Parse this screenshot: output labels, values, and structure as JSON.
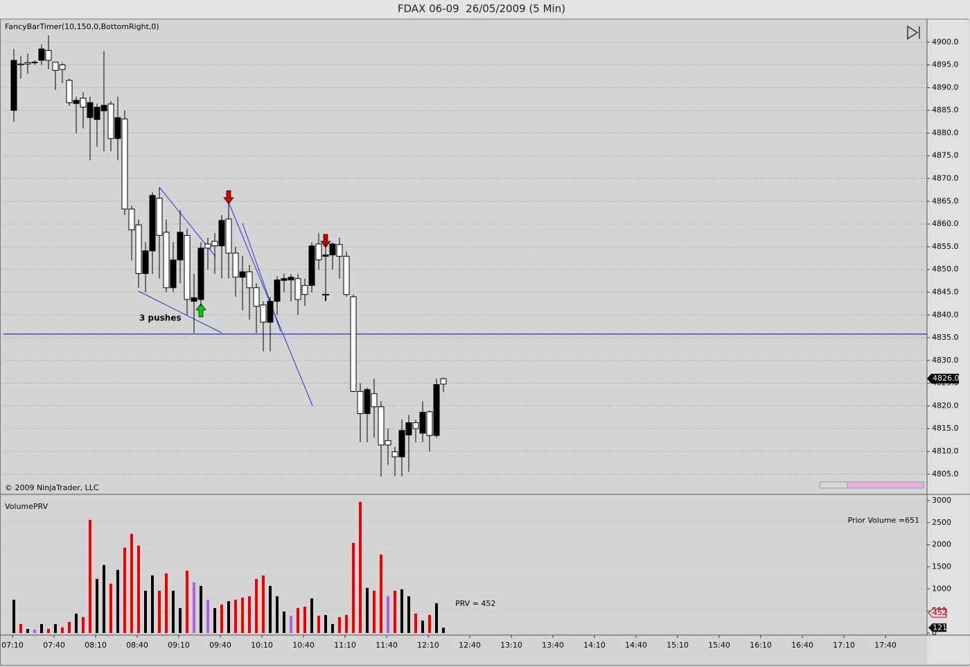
{
  "window_title": "FDAX 06-09  26/05/2009 (5 Min)",
  "x_axis": {
    "labels": [
      "07:10",
      "07:40",
      "08:10",
      "08:40",
      "09:10",
      "09:40",
      "10:10",
      "10:40",
      "11:10",
      "11:40",
      "12:10",
      "12:40",
      "13:10",
      "13:40",
      "14:10",
      "14:40",
      "15:10",
      "15:40",
      "16:10",
      "16:40",
      "17:10",
      "17:40"
    ]
  },
  "chart_data": [
    {
      "type": "candlestick",
      "indicator_label": "FancyBarTimer(10,150,0,BottomRight,0)",
      "copyright": "© 2009 NinjaTrader, LLC",
      "annotation": "3 pushes",
      "up_color": "#ffffff",
      "down_color": "#000000",
      "open": [
        4896,
        4895,
        4895.2,
        4895.5,
        4898.5,
        4896,
        4893.8,
        4894,
        4886.7,
        4887.2,
        4885.7,
        4886.7,
        4885.7,
        4886.1,
        4878.8,
        4883.4,
        4863.3,
        4858.7,
        4849.1,
        4854.1,
        4866.3,
        4857.5,
        4846,
        4852.1,
        4858.2,
        4843.4,
        4843.8,
        4854.7,
        4854.7,
        4855.2,
        4860.8,
        4853.6,
        4848.3,
        4849.5,
        4846,
        4841.9,
        4838.4,
        4843,
        4847.7,
        4848,
        4848.3,
        4843.4,
        4844.5,
        4855.2,
        4852.1,
        4853.2,
        4855.6,
        4852.9,
        4844.5,
        4823.2,
        4818.3,
        4823.6,
        4819.8,
        4811.4,
        4811.4,
        4808.8,
        4814.6,
        4816.3,
        4815,
        4818.6,
        4813.5,
        4824.7,
        4824.8
      ],
      "high": [
        4898.5,
        4897,
        4897.5,
        4896,
        4899.5,
        4901.5,
        4895.7,
        4895.5,
        4892,
        4888,
        4889,
        4888,
        4886.5,
        4898,
        4887,
        4888,
        4885,
        4864,
        4861,
        4856,
        4867,
        4868,
        4861,
        4856,
        4863,
        4859,
        4849,
        4856,
        4857,
        4858,
        4862,
        4865,
        4855,
        4853,
        4851,
        4847,
        4843,
        4844,
        4848.5,
        4849,
        4849,
        4849,
        4848,
        4856,
        4858,
        4857,
        4856,
        4857,
        4854,
        4844.5,
        4825,
        4824,
        4826,
        4821,
        4815,
        4811,
        4817,
        4818,
        4817,
        4821,
        4819,
        4826,
        4826.2
      ],
      "low": [
        4882.5,
        4892,
        4893,
        4895,
        4895,
        4894,
        4889.5,
        4891,
        4886,
        4880,
        4881,
        4874,
        4877,
        4876,
        4876,
        4874,
        4862,
        4852,
        4846,
        4845,
        4849,
        4848,
        4845,
        4845,
        4847,
        4840,
        4836,
        4842,
        4850,
        4849,
        4848,
        4848,
        4844,
        4841,
        4839,
        4836,
        4832,
        4832,
        4840,
        4845,
        4843,
        4840,
        4842,
        4845,
        4850,
        4844.5,
        4850,
        4848,
        4844,
        4823,
        4812,
        4812,
        4813,
        4804.5,
        4807,
        4804.5,
        4804.5,
        4805.5,
        4812,
        4812,
        4810,
        4813,
        4823
      ],
      "close": [
        4885,
        4895.2,
        4895.5,
        4895.6,
        4896,
        4898.2,
        4895.6,
        4895,
        4891.6,
        4886.5,
        4887.7,
        4883.4,
        4883,
        4884.9,
        4886.4,
        4878.8,
        4883.1,
        4863.3,
        4859.8,
        4849.1,
        4854.1,
        4865.7,
        4858.2,
        4846,
        4852.1,
        4857.5,
        4843,
        4843.4,
        4855.6,
        4856.2,
        4855.2,
        4861.1,
        4853.6,
        4848.3,
        4849.5,
        4846,
        4842.2,
        4838.4,
        4843,
        4847.6,
        4847.7,
        4848,
        4846.5,
        4846.5,
        4855.6,
        4852.9,
        4853.2,
        4855.5,
        4852.9,
        4844,
        4823.2,
        4818.3,
        4822.7,
        4819.8,
        4812.4,
        4809.9,
        4808.8,
        4813.6,
        4816.3,
        4814,
        4818.7,
        4813.5,
        4826
      ],
      "ylim": [
        4800.7,
        4905.0
      ],
      "yticks": [
        {
          "value": 4805,
          "label": "4805.0"
        },
        {
          "value": 4810,
          "label": "4810.0"
        },
        {
          "value": 4815,
          "label": "4815.0"
        },
        {
          "value": 4820,
          "label": "4820.0"
        },
        {
          "value": 4825,
          "label": "4825.0"
        },
        {
          "value": 4830,
          "label": "4830.0"
        },
        {
          "value": 4835,
          "label": "4835.0"
        },
        {
          "value": 4840,
          "label": "4840.0"
        },
        {
          "value": 4845,
          "label": "4845.0"
        },
        {
          "value": 4850,
          "label": "4850.0"
        },
        {
          "value": 4855,
          "label": "4855.0"
        },
        {
          "value": 4860,
          "label": "4860.0"
        },
        {
          "value": 4865,
          "label": "4865.0"
        },
        {
          "value": 4870,
          "label": "4870.0"
        },
        {
          "value": 4875,
          "label": "4875.0"
        },
        {
          "value": 4880,
          "label": "4880.0"
        },
        {
          "value": 4885,
          "label": "4885.0"
        },
        {
          "value": 4890,
          "label": "4890.0"
        },
        {
          "value": 4895,
          "label": "4895.0"
        },
        {
          "value": 4900,
          "label": "4900.0"
        }
      ],
      "grid": true,
      "horizontal_line": {
        "value": 4835.8,
        "color": "#0000cc"
      },
      "last_price": {
        "value": 4826,
        "label": "4826.0"
      }
    },
    {
      "type": "bar",
      "title": "VolumePRV",
      "right_note": "Prior Volume =651",
      "prv_label": "PRV = 452",
      "prv_marker": 452,
      "values": [
        755,
        204,
        94,
        79,
        204,
        94,
        204,
        126,
        252,
        440,
        362,
        2563,
        1226,
        1541,
        1116,
        1431,
        1934,
        2248,
        1981,
        959,
        1305,
        959,
        1352,
        959,
        566,
        1415,
        1148,
        1069,
        755,
        566,
        645,
        723,
        755,
        802,
        833,
        1226,
        1305,
        1069,
        833,
        487,
        393,
        566,
        598,
        786,
        393,
        409,
        204,
        362,
        409,
        2044,
        2972,
        1022,
        959,
        1777,
        833,
        959,
        991,
        833,
        440,
        283,
        409,
        676,
        121
      ],
      "colors": [
        "#000000",
        "#ee0000",
        "#000000",
        "#b060e0",
        "#000000",
        "#ee0000",
        "#000000",
        "#ee0000",
        "#ee0000",
        "#000000",
        "#ee0000",
        "#ee0000",
        "#000000",
        "#000000",
        "#ee0000",
        "#000000",
        "#ee0000",
        "#ee0000",
        "#ee0000",
        "#000000",
        "#000000",
        "#ee0000",
        "#ee0000",
        "#000000",
        "#000000",
        "#ee0000",
        "#b060e0",
        "#000000",
        "#b060e0",
        "#000000",
        "#ee0000",
        "#000000",
        "#ee0000",
        "#ee0000",
        "#ee0000",
        "#ee0000",
        "#ee0000",
        "#000000",
        "#000000",
        "#000000",
        "#b060e0",
        "#ee0000",
        "#ee0000",
        "#000000",
        "#ee0000",
        "#000000",
        "#000000",
        "#ee0000",
        "#ee0000",
        "#ee0000",
        "#ee0000",
        "#000000",
        "#ee0000",
        "#ee0000",
        "#b060e0",
        "#ee0000",
        "#000000",
        "#000000",
        "#ee0000",
        "#000000",
        "#ee0000",
        "#000000",
        "#000000"
      ],
      "ylim": [
        -47,
        3110
      ],
      "yticks": [
        0,
        500,
        1000,
        1500,
        2000,
        2500,
        3000
      ],
      "grid": true
    }
  ]
}
